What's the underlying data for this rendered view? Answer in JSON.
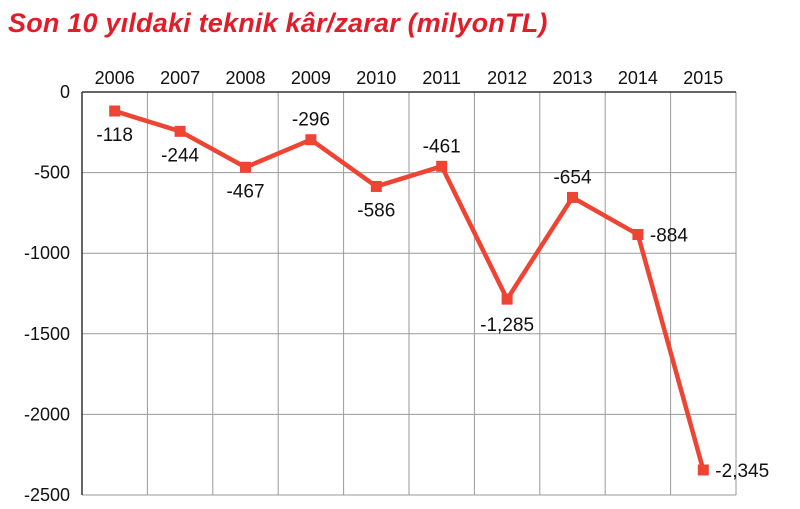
{
  "chart_data": {
    "type": "line",
    "title": "Son 10 yıldaki teknik kâr/zarar (milyonTL)",
    "categories": [
      "2006",
      "2007",
      "2008",
      "2009",
      "2010",
      "2011",
      "2012",
      "2013",
      "2014",
      "2015"
    ],
    "series": [
      {
        "values": [
          -118,
          -244,
          -467,
          -296,
          -586,
          -461,
          -1285,
          -654,
          -884,
          -2345
        ]
      }
    ],
    "data_labels": [
      "-118",
      "-244",
      "-467",
      "-296",
      "-586",
      "-461",
      "-1,285",
      "-654",
      "-884",
      "-2,345"
    ],
    "y_ticks": [
      "0",
      "-500",
      "-1000",
      "-1500",
      "-2000",
      "-2500"
    ],
    "ylim": [
      -2500,
      0
    ],
    "x_axis_position": "top",
    "grid": true,
    "line_color": "#ee4433"
  }
}
